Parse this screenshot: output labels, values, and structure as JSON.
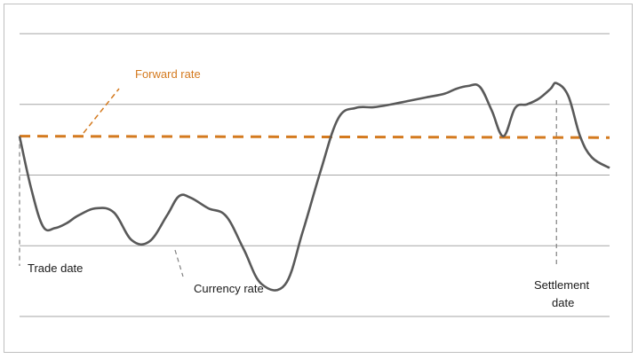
{
  "chart_data": {
    "type": "line",
    "title": "",
    "xlabel": "",
    "ylabel": "",
    "grid": true,
    "legend": "none",
    "x_range": [
      0,
      100
    ],
    "y_range": [
      0,
      4
    ],
    "gridlines_y": [
      0,
      1,
      2,
      3,
      4
    ],
    "series": [
      {
        "key": "currency",
        "x": [
          0,
          2,
          4,
          6,
          8,
          10,
          13,
          16,
          19,
          22,
          25,
          27,
          29,
          32,
          35,
          38,
          41,
          45,
          48,
          51,
          54,
          57,
          60,
          63,
          66,
          69,
          72,
          74,
          76,
          78,
          80,
          82,
          84,
          86,
          88,
          90,
          91,
          93,
          95,
          97,
          100
        ],
        "y": [
          2.55,
          1.8,
          1.27,
          1.25,
          1.32,
          1.43,
          1.53,
          1.47,
          1.08,
          1.06,
          1.43,
          1.7,
          1.68,
          1.53,
          1.42,
          0.95,
          0.46,
          0.45,
          1.2,
          2.05,
          2.8,
          2.95,
          2.96,
          3.0,
          3.05,
          3.1,
          3.15,
          3.22,
          3.26,
          3.25,
          2.92,
          2.55,
          2.95,
          3.0,
          3.08,
          3.22,
          3.3,
          3.12,
          2.55,
          2.25,
          2.1
        ]
      },
      {
        "key": "forward",
        "style": "dashed",
        "x": [
          0,
          100
        ],
        "y": [
          2.55,
          2.53
        ]
      }
    ],
    "annotations": [
      {
        "key": "forward",
        "text": "Forward rate",
        "color": "#d47a1f"
      },
      {
        "key": "currency",
        "text": "Currency rate",
        "color": "#1a1a1a"
      },
      {
        "key": "trade",
        "text": "Trade date",
        "color": "#1a1a1a"
      },
      {
        "key": "settle",
        "lines": [
          "Settlement",
          "date"
        ],
        "color": "#1a1a1a"
      }
    ],
    "colors": {
      "currency_line": "#595959",
      "forward_line": "#d47a1f",
      "grid": "#a6a6a6",
      "marker": "#7f7f7f"
    }
  }
}
